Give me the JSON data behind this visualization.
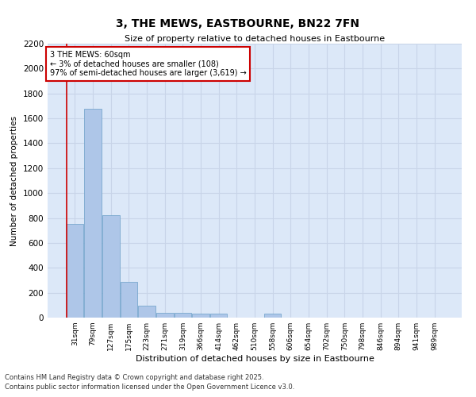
{
  "title_line1": "3, THE MEWS, EASTBOURNE, BN22 7FN",
  "title_line2": "Size of property relative to detached houses in Eastbourne",
  "xlabel": "Distribution of detached houses by size in Eastbourne",
  "ylabel": "Number of detached properties",
  "categories": [
    "31sqm",
    "79sqm",
    "127sqm",
    "175sqm",
    "223sqm",
    "271sqm",
    "319sqm",
    "366sqm",
    "414sqm",
    "462sqm",
    "510sqm",
    "558sqm",
    "606sqm",
    "654sqm",
    "702sqm",
    "750sqm",
    "798sqm",
    "846sqm",
    "894sqm",
    "941sqm",
    "989sqm"
  ],
  "values": [
    750,
    1680,
    820,
    290,
    95,
    40,
    37,
    35,
    30,
    0,
    0,
    30,
    0,
    0,
    0,
    0,
    0,
    0,
    0,
    0,
    0
  ],
  "bar_color": "#aec6e8",
  "bar_edge_color": "#6a9fc8",
  "annotation_box_color": "#cc0000",
  "annotation_text": "3 THE MEWS: 60sqm\n← 3% of detached houses are smaller (108)\n97% of semi-detached houses are larger (3,619) →",
  "vline_color": "#cc0000",
  "ylim": [
    0,
    2200
  ],
  "yticks": [
    0,
    200,
    400,
    600,
    800,
    1000,
    1200,
    1400,
    1600,
    1800,
    2000,
    2200
  ],
  "grid_color": "#c8d4e8",
  "background_color": "#dce8f8",
  "footnote_line1": "Contains HM Land Registry data © Crown copyright and database right 2025.",
  "footnote_line2": "Contains public sector information licensed under the Open Government Licence v3.0."
}
